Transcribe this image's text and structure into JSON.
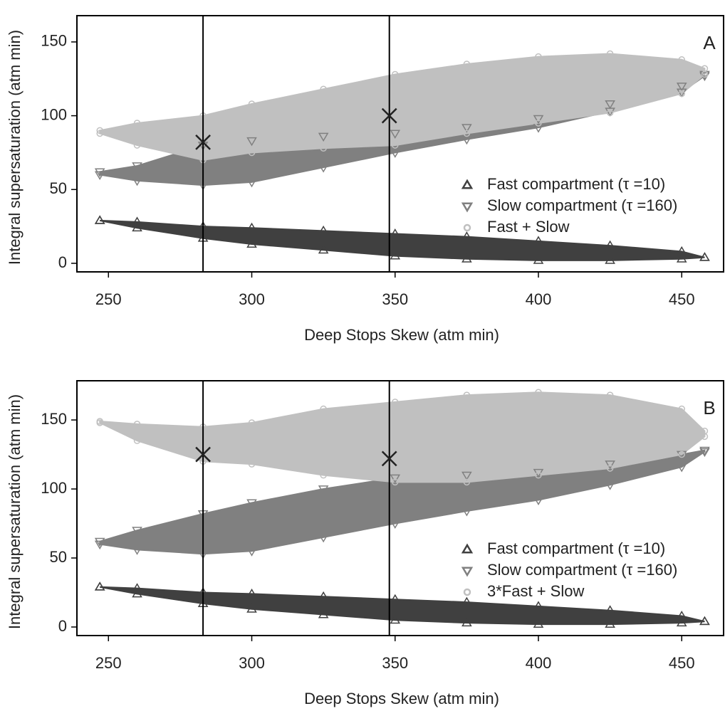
{
  "chart_data": [
    {
      "type": "band",
      "panel_label": "A",
      "x_label": "Deep Stops Skew (atm min)",
      "y_label": "Integral supersaturation (atm min)",
      "x": [
        247,
        260,
        283,
        300,
        325,
        350,
        375,
        400,
        425,
        450,
        458
      ],
      "series": [
        {
          "name": "Fast compartment (τ =10)",
          "color": "#404040",
          "marker": "triangle-up",
          "low": [
            29,
            24,
            17,
            13,
            9,
            5,
            3,
            2,
            2,
            3,
            4
          ],
          "high": [
            29,
            28,
            25,
            24,
            22,
            20,
            18,
            15,
            12,
            8,
            4
          ]
        },
        {
          "name": "Slow compartment (τ =160)",
          "color": "#808080",
          "marker": "triangle-down",
          "low": [
            60,
            56,
            53,
            55,
            65,
            75,
            84,
            92,
            103,
            116,
            127
          ],
          "high": [
            62,
            66,
            80,
            83,
            86,
            88,
            92,
            98,
            108,
            120,
            128
          ]
        },
        {
          "name": "Fast + Slow",
          "color": "#c0c0c0",
          "marker": "circle",
          "low": [
            88,
            80,
            70,
            75,
            78,
            80,
            88,
            95,
            102,
            115,
            128
          ],
          "high": [
            90,
            95,
            100,
            108,
            118,
            128,
            135,
            140,
            142,
            138,
            132
          ]
        }
      ],
      "vlines": [
        283,
        348
      ],
      "highlight_points": {
        "x": [
          283,
          348
        ],
        "y": [
          82,
          100
        ]
      },
      "xlim": [
        239,
        464.6
      ],
      "ylim": [
        -5.8,
        167.8
      ],
      "xticks": [
        250,
        300,
        350,
        400,
        450
      ],
      "yticks": [
        0,
        50,
        100,
        150
      ],
      "legend": "center right"
    },
    {
      "type": "band",
      "panel_label": "B",
      "x_label": "Deep Stops Skew (atm min)",
      "y_label": "Integral supersaturation (atm min)",
      "x": [
        247,
        260,
        283,
        300,
        325,
        350,
        375,
        400,
        425,
        450,
        458
      ],
      "series": [
        {
          "name": "Fast compartment (τ =10)",
          "color": "#404040",
          "marker": "triangle-up",
          "low": [
            29,
            24,
            17,
            13,
            9,
            5,
            3,
            2,
            2,
            3,
            4
          ],
          "high": [
            29,
            28,
            25,
            24,
            22,
            20,
            18,
            15,
            12,
            8,
            4
          ]
        },
        {
          "name": "Slow compartment (τ =160)",
          "color": "#808080",
          "marker": "triangle-down",
          "low": [
            60,
            56,
            53,
            55,
            65,
            75,
            84,
            92,
            103,
            116,
            127
          ],
          "high": [
            62,
            70,
            82,
            90,
            100,
            108,
            110,
            112,
            118,
            125,
            128
          ]
        },
        {
          "name": "3*Fast + Slow",
          "color": "#c0c0c0",
          "marker": "circle",
          "low": [
            148,
            135,
            120,
            118,
            110,
            105,
            105,
            110,
            115,
            125,
            138
          ],
          "high": [
            149,
            147,
            145,
            148,
            158,
            163,
            168,
            170,
            168,
            158,
            142
          ]
        }
      ],
      "vlines": [
        283,
        348
      ],
      "highlight_points": {
        "x": [
          283,
          348
        ],
        "y": [
          125,
          122
        ]
      },
      "xlim": [
        239,
        464.6
      ],
      "ylim": [
        -6.2,
        178.4
      ],
      "xticks": [
        250,
        300,
        350,
        400,
        450
      ],
      "yticks": [
        0,
        50,
        100,
        150
      ],
      "legend": "center right"
    }
  ]
}
